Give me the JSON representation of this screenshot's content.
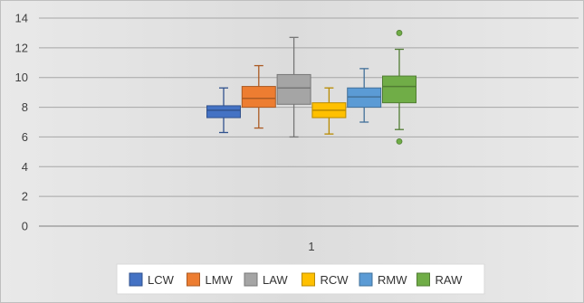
{
  "chart_data": {
    "type": "box",
    "categories": [
      "1"
    ],
    "ylim": [
      0,
      14
    ],
    "yticks": [
      0,
      2,
      4,
      6,
      8,
      10,
      12,
      14
    ],
    "grid": true,
    "legend_position": "bottom",
    "series": [
      {
        "name": "LCW",
        "color": "#4472c4",
        "min": 6.3,
        "q1": 7.3,
        "median": 7.8,
        "q3": 8.1,
        "max": 9.3,
        "outliers": []
      },
      {
        "name": "LMW",
        "color": "#ed7d31",
        "min": 6.6,
        "q1": 8.0,
        "median": 8.6,
        "q3": 9.4,
        "max": 10.8,
        "outliers": []
      },
      {
        "name": "LAW",
        "color": "#a5a5a5",
        "min": 6.0,
        "q1": 8.2,
        "median": 9.3,
        "q3": 10.2,
        "max": 12.7,
        "outliers": []
      },
      {
        "name": "RCW",
        "color": "#ffc000",
        "min": 6.2,
        "q1": 7.3,
        "median": 7.8,
        "q3": 8.3,
        "max": 9.3,
        "outliers": []
      },
      {
        "name": "RMW",
        "color": "#5b9bd5",
        "min": 7.0,
        "q1": 8.0,
        "median": 8.7,
        "q3": 9.3,
        "max": 10.6,
        "outliers": []
      },
      {
        "name": "RAW",
        "color": "#70ad47",
        "min": 6.5,
        "q1": 8.3,
        "median": 9.4,
        "q3": 10.1,
        "max": 11.9,
        "outliers": [
          13.0,
          5.7
        ]
      }
    ]
  }
}
